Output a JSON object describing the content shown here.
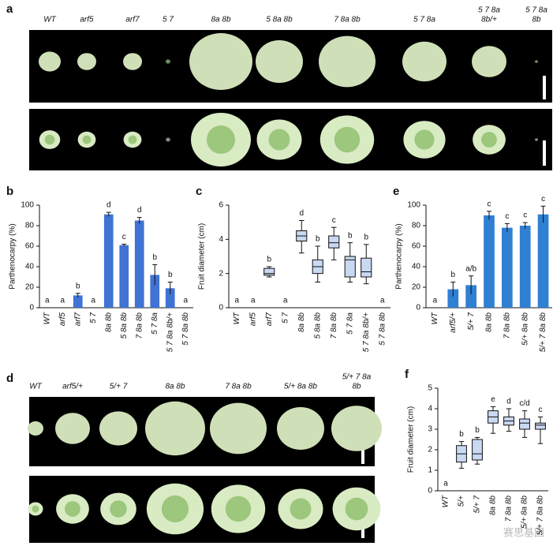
{
  "panels": {
    "a": {
      "letter": "a",
      "labels": [
        [
          "WT"
        ],
        [
          "arf5"
        ],
        [
          "arf7"
        ],
        [
          "5 7"
        ],
        [
          "8a 8b"
        ],
        [
          "5 8a 8b"
        ],
        [
          "7 8a 8b"
        ],
        [
          "5 7 8a"
        ],
        [
          "5 7 8a",
          "8b/+"
        ],
        [
          "5 7 8a",
          "8b"
        ]
      ]
    },
    "d": {
      "letter": "d",
      "labels": [
        [
          "WT"
        ],
        [
          "arf5/+"
        ],
        [
          "5/+ 7"
        ],
        [
          "8a 8b"
        ],
        [
          "7 8a 8b"
        ],
        [
          "5/+ 8a 8b"
        ],
        [
          "5/+ 7 8a",
          "8b"
        ]
      ]
    }
  },
  "watermark": "赛思基因",
  "chart_data": [
    {
      "type": "bar",
      "letter": "b",
      "ylabel": "Parthenocarpy (%)",
      "color": "#3f73d4",
      "categories": [
        "WT",
        "arf5",
        "arf7",
        "5 7",
        "8a 8b",
        "5 8a 8b",
        "7 8a 8b",
        "5 7 8a",
        "5 7 8a 8b/+",
        "5 7 8a 8b"
      ],
      "values": [
        0,
        0,
        12,
        0,
        91,
        61,
        85,
        32,
        19,
        0
      ],
      "errors": [
        0,
        0,
        2,
        0,
        2,
        1,
        3,
        10,
        6,
        0
      ],
      "groups": [
        "a",
        "a",
        "b",
        "a",
        "d",
        "c",
        "d",
        "b",
        "b",
        "a"
      ],
      "ylim": [
        0,
        100
      ],
      "yticks": [
        0,
        20,
        40,
        60,
        80,
        100
      ]
    },
    {
      "type": "box",
      "letter": "c",
      "ylabel": "Fruit diameter (cm)",
      "color": "#c9d9f2",
      "categories": [
        "WT",
        "arf5",
        "arf7",
        "5 7",
        "8a 8b",
        "5 8a 8b",
        "7 8a 8b",
        "5 7 8a",
        "5 7 8a 8b/+",
        "5 7 8a 8b"
      ],
      "stats": [
        [
          0,
          0,
          0,
          0,
          0
        ],
        [
          0,
          0,
          0,
          0,
          0
        ],
        [
          1.8,
          1.9,
          2.0,
          2.3,
          2.4
        ],
        [
          0,
          0,
          0,
          0,
          0
        ],
        [
          3.2,
          3.9,
          4.2,
          4.5,
          5.1
        ],
        [
          1.5,
          2.0,
          2.4,
          2.8,
          3.6
        ],
        [
          2.8,
          3.5,
          3.8,
          4.2,
          4.7
        ],
        [
          1.5,
          1.8,
          2.8,
          3.0,
          3.8
        ],
        [
          1.4,
          1.8,
          2.1,
          2.9,
          3.7
        ],
        [
          0,
          0,
          0,
          0,
          0
        ]
      ],
      "groups": [
        "a",
        "a",
        "b",
        "a",
        "d",
        "b",
        "c",
        "b",
        "b",
        "a"
      ],
      "ylim": [
        0,
        6
      ],
      "yticks": [
        0,
        2,
        4,
        6
      ]
    },
    {
      "type": "bar",
      "letter": "e",
      "ylabel": "Parthenocarpy (%)",
      "color": "#2f7fd3",
      "categories": [
        "WT",
        "arf5/+",
        "5/+ 7",
        "8a 8b",
        "7 8a 8b",
        "5/+ 8a 8b",
        "5/+ 7 8a 8b"
      ],
      "values": [
        0,
        18,
        22,
        90,
        78,
        80,
        91
      ],
      "errors": [
        0,
        7,
        9,
        4,
        4,
        3,
        8
      ],
      "groups": [
        "a",
        "b",
        "a/b",
        "c",
        "c",
        "c",
        "c"
      ],
      "ylim": [
        0,
        100
      ],
      "yticks": [
        0,
        20,
        40,
        60,
        80,
        100
      ]
    },
    {
      "type": "box",
      "letter": "f",
      "ylabel": "Fruit diameter (cm)",
      "color": "#c9d9f2",
      "categories": [
        "WT",
        "5/+",
        "5/+ 7",
        "8a 8b",
        "7 8a 8b",
        "5/+ 8a 8b",
        "5/+ 7 8a 8b"
      ],
      "stats": [
        [
          0,
          0,
          0,
          0,
          0
        ],
        [
          1.1,
          1.4,
          1.8,
          2.2,
          2.4
        ],
        [
          1.3,
          1.5,
          1.8,
          2.5,
          2.6
        ],
        [
          2.8,
          3.3,
          3.6,
          3.9,
          4.1
        ],
        [
          2.9,
          3.2,
          3.4,
          3.6,
          4.0
        ],
        [
          2.6,
          3.0,
          3.3,
          3.5,
          3.9
        ],
        [
          2.3,
          3.0,
          3.2,
          3.3,
          3.6
        ]
      ],
      "groups": [
        "a",
        "b",
        "b",
        "e",
        "d",
        "c/d",
        "c"
      ],
      "ylim": [
        0,
        5
      ],
      "yticks": [
        0,
        1,
        2,
        3,
        4,
        5
      ]
    }
  ]
}
